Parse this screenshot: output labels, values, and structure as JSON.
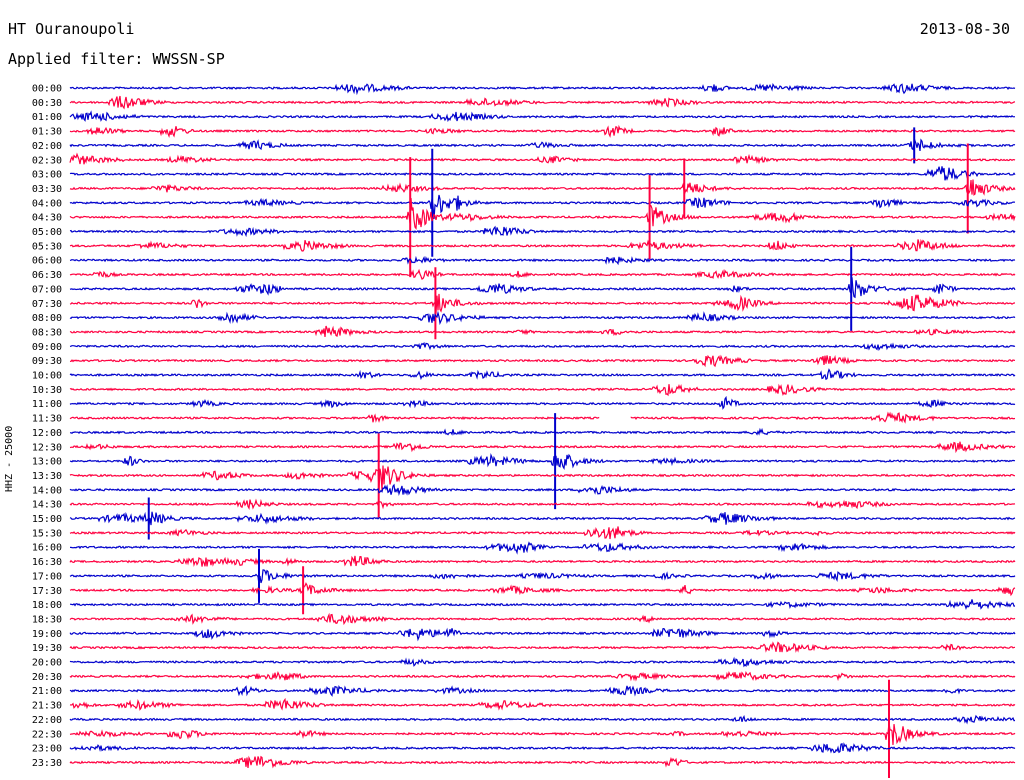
{
  "header": {
    "station": "HT Ouranoupoli",
    "date": "2013-08-30",
    "filter": "Applied filter: WWSSN-SP"
  },
  "y_axis_label": "HHZ - 25000",
  "colors": {
    "even_trace": "#0000cc",
    "odd_trace": "#ff0040"
  },
  "chart_data": {
    "type": "line",
    "title": "HT Ouranoupoli",
    "subtitle": "Applied filter: WWSSN-SP",
    "ylabel": "HHZ - 25000",
    "categories": [
      "00:00",
      "00:30",
      "01:00",
      "01:30",
      "02:00",
      "02:30",
      "03:00",
      "03:30",
      "04:00",
      "04:30",
      "05:00",
      "05:30",
      "06:00",
      "06:30",
      "07:00",
      "07:30",
      "08:00",
      "08:30",
      "09:00",
      "09:30",
      "10:00",
      "10:30",
      "11:00",
      "11:30",
      "12:00",
      "12:30",
      "13:00",
      "13:30",
      "14:00",
      "14:30",
      "15:00",
      "15:30",
      "16:00",
      "16:30",
      "17:00",
      "17:30",
      "18:00",
      "18:30",
      "19:00",
      "19:30",
      "20:00",
      "20:30",
      "21:00",
      "21:30",
      "22:00",
      "22:30",
      "23:00",
      "23:30"
    ],
    "trace_minutes": 30,
    "events": [
      {
        "trace": "03:30",
        "minute": 28.5,
        "amp": 15
      },
      {
        "trace": "04:30",
        "minute": 10.8,
        "amp": 20
      },
      {
        "trace": "04:00",
        "minute": 11.5,
        "amp": 18
      },
      {
        "trace": "04:30",
        "minute": 18.4,
        "amp": 14
      },
      {
        "trace": "07:00",
        "minute": 24.8,
        "amp": 14
      },
      {
        "trace": "07:30",
        "minute": 11.6,
        "amp": 12
      },
      {
        "trace": "13:00",
        "minute": 15.4,
        "amp": 16
      },
      {
        "trace": "13:30",
        "minute": 9.8,
        "amp": 14
      },
      {
        "trace": "03:30",
        "minute": 19.5,
        "amp": 10
      },
      {
        "trace": "22:30",
        "minute": 26.0,
        "amp": 18
      },
      {
        "trace": "17:00",
        "minute": 6.0,
        "amp": 9
      },
      {
        "trace": "17:30",
        "minute": 7.4,
        "amp": 8
      },
      {
        "trace": "15:00",
        "minute": 2.5,
        "amp": 7
      },
      {
        "trace": "02:00",
        "minute": 26.8,
        "amp": 6
      }
    ],
    "gap": {
      "trace": "11:30",
      "minute_start": 16.8,
      "minute_end": 17.8
    }
  }
}
